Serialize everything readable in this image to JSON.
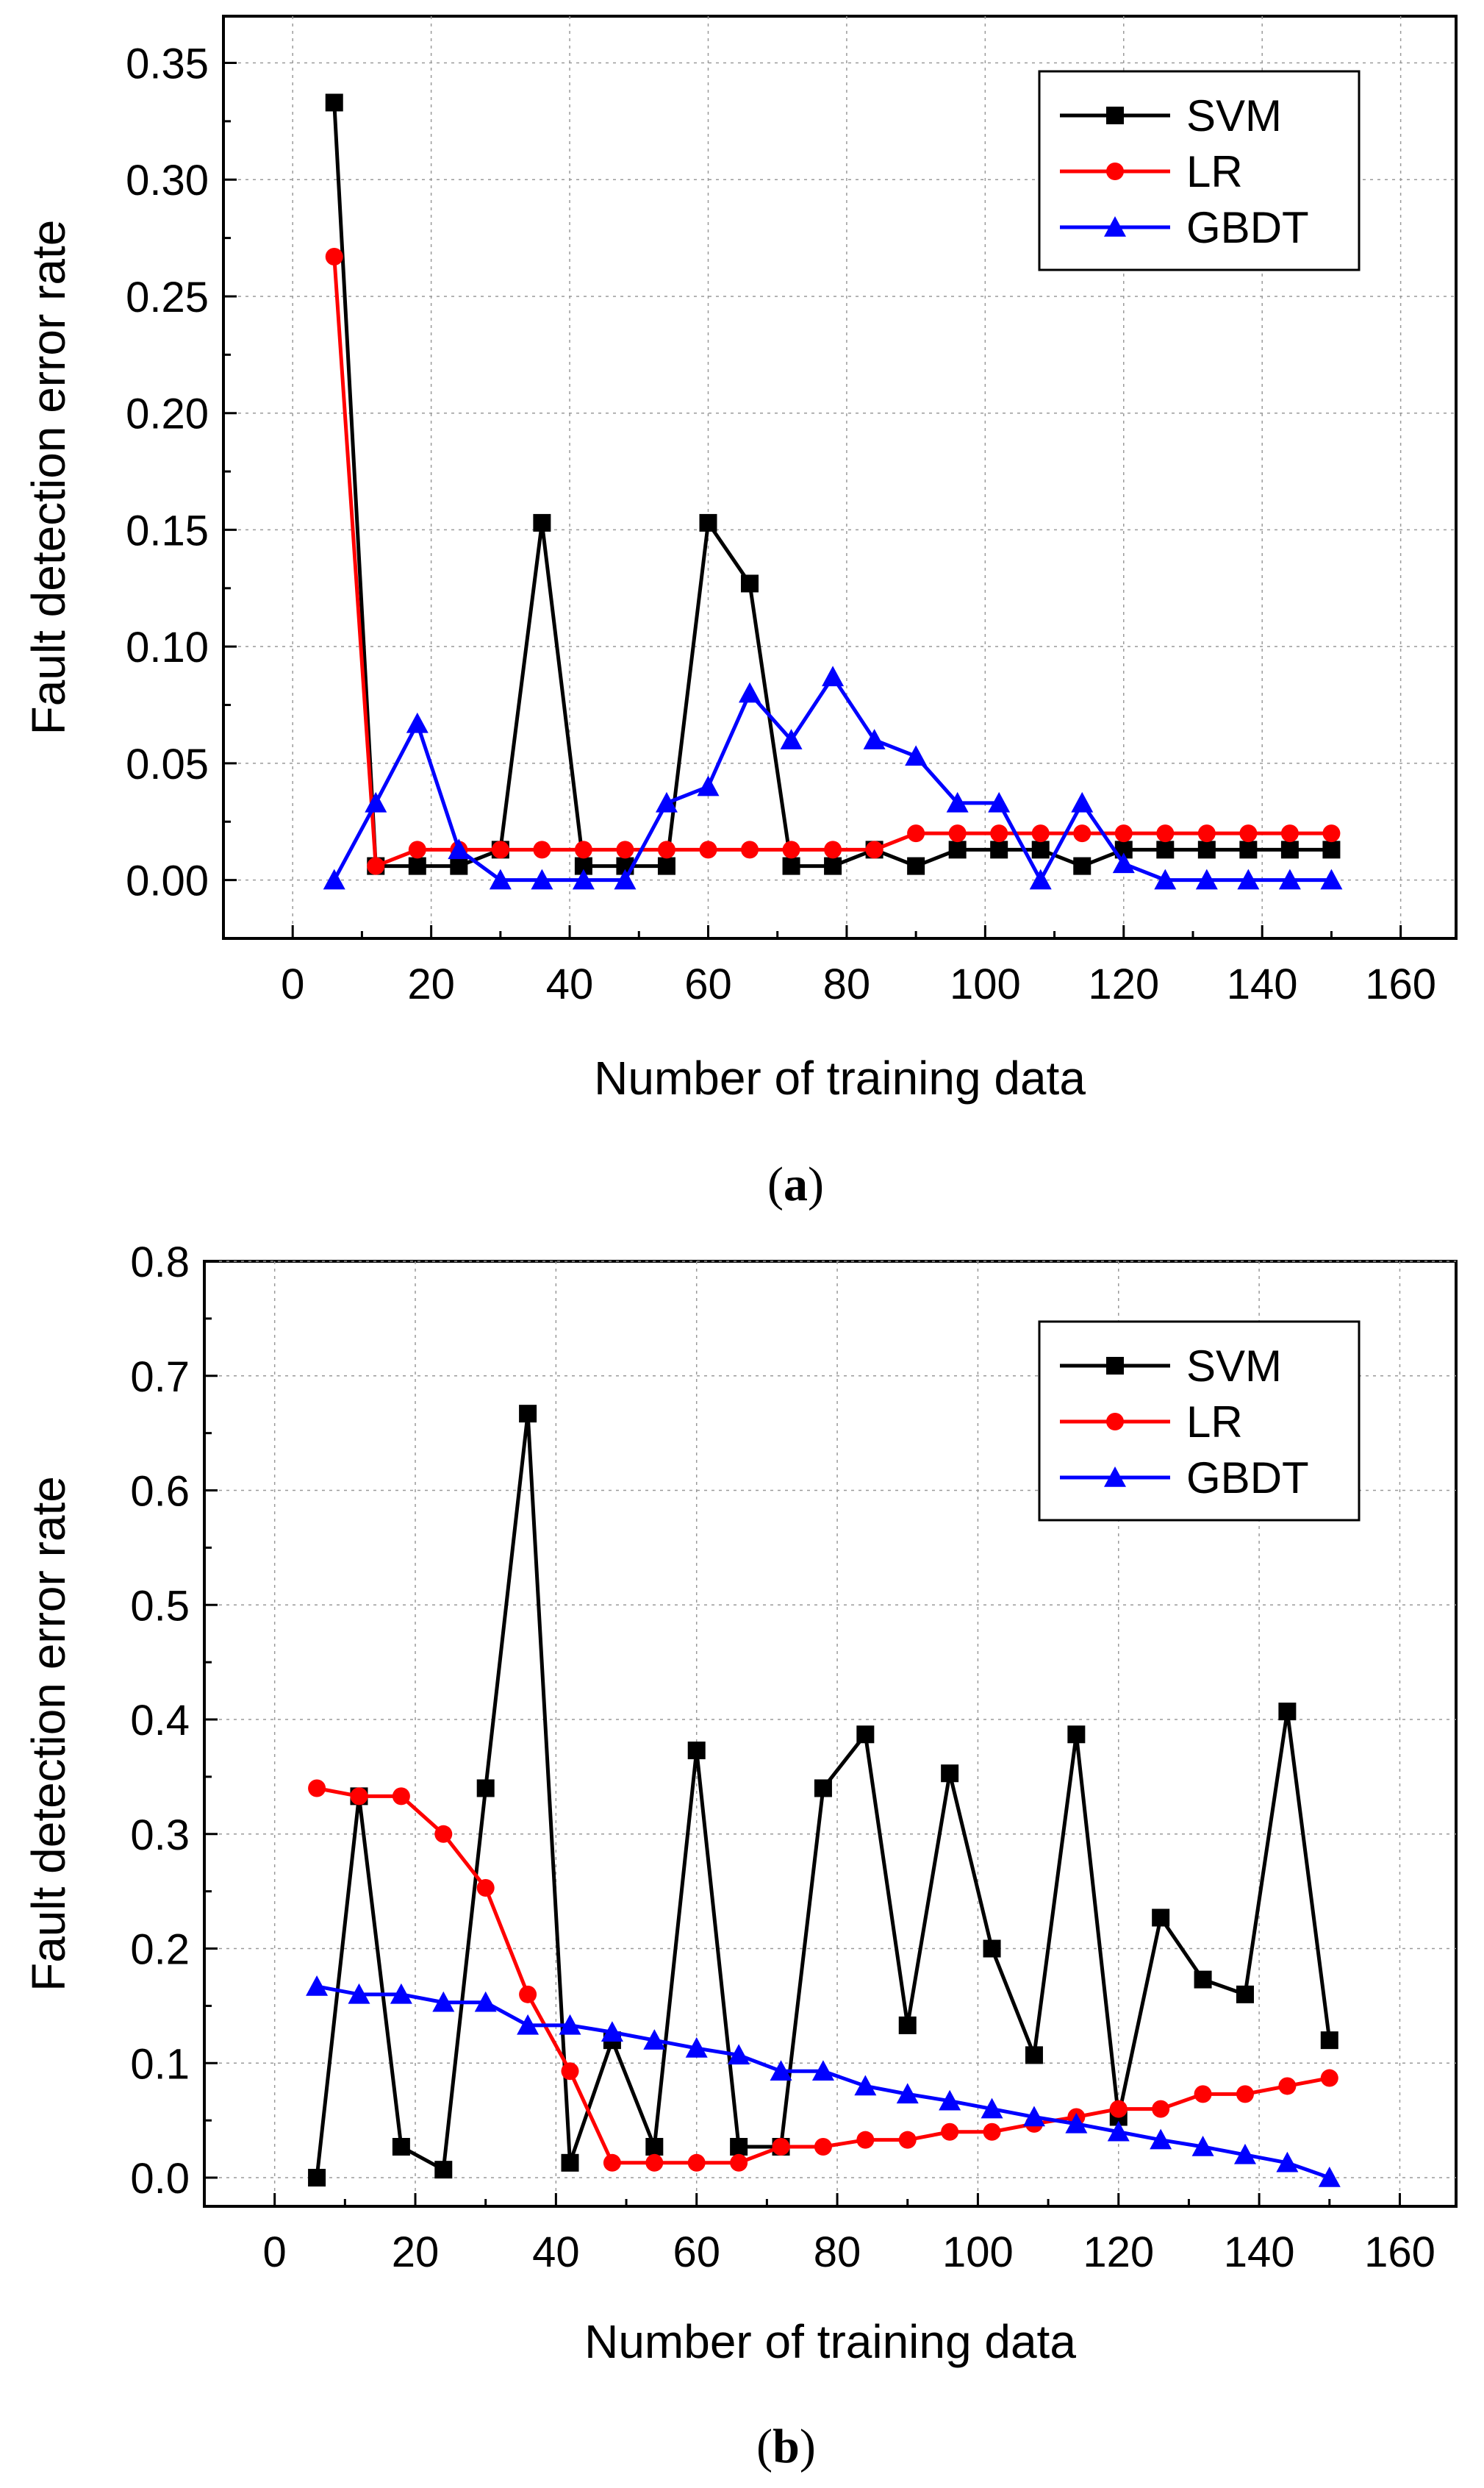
{
  "chart_data": [
    {
      "type": "line",
      "panel": "a",
      "caption_open": "(",
      "caption_letter": "a",
      "caption_close": ")",
      "xlabel": "Number of training data",
      "ylabel": "Fault detection error rate",
      "xlim": [
        -10,
        168
      ],
      "ylim": [
        -0.025,
        0.37
      ],
      "xticks": [
        0,
        20,
        40,
        60,
        80,
        100,
        120,
        140,
        160
      ],
      "xtick_labels": [
        "0",
        "20",
        "40",
        "60",
        "80",
        "100",
        "120",
        "140",
        "160"
      ],
      "yticks": [
        0.0,
        0.05,
        0.1,
        0.15,
        0.2,
        0.25,
        0.3,
        0.35
      ],
      "ytick_labels": [
        "0.00",
        "0.05",
        "0.10",
        "0.15",
        "0.20",
        "0.25",
        "0.30",
        "0.35"
      ],
      "grid": true,
      "legend_position": "top-right",
      "x": [
        6,
        12,
        18,
        24,
        30,
        36,
        42,
        48,
        54,
        60,
        66,
        72,
        78,
        84,
        90,
        96,
        102,
        108,
        114,
        120,
        126,
        132,
        138,
        144,
        150
      ],
      "series": [
        {
          "name": "SVM",
          "color": "#000000",
          "marker": "square",
          "values": [
            0.333,
            0.006,
            0.006,
            0.006,
            0.013,
            0.153,
            0.006,
            0.006,
            0.006,
            0.153,
            0.127,
            0.006,
            0.006,
            0.013,
            0.006,
            0.013,
            0.013,
            0.013,
            0.006,
            0.013,
            0.013,
            0.013,
            0.013,
            0.013,
            0.013
          ]
        },
        {
          "name": "LR",
          "color": "#ff0000",
          "marker": "circle",
          "values": [
            0.267,
            0.006,
            0.013,
            0.013,
            0.013,
            0.013,
            0.013,
            0.013,
            0.013,
            0.013,
            0.013,
            0.013,
            0.013,
            0.013,
            0.02,
            0.02,
            0.02,
            0.02,
            0.02,
            0.02,
            0.02,
            0.02,
            0.02,
            0.02,
            0.02
          ]
        },
        {
          "name": "GBDT",
          "color": "#0000ff",
          "marker": "triangle",
          "values": [
            0.0,
            0.033,
            0.067,
            0.013,
            0.0,
            0.0,
            0.0,
            0.0,
            0.033,
            0.04,
            0.08,
            0.06,
            0.087,
            0.06,
            0.053,
            0.033,
            0.033,
            0.0,
            0.033,
            0.007,
            0.0,
            0.0,
            0.0,
            0.0,
            0.0
          ]
        }
      ]
    },
    {
      "type": "line",
      "panel": "b",
      "caption_open": "(",
      "caption_letter": "b",
      "caption_close": ")",
      "xlabel": "Number of training data",
      "ylabel": "Fault detection error rate",
      "xlim": [
        -10,
        168
      ],
      "ylim": [
        -0.025,
        0.8
      ],
      "xticks": [
        0,
        20,
        40,
        60,
        80,
        100,
        120,
        140,
        160
      ],
      "xtick_labels": [
        "0",
        "20",
        "40",
        "60",
        "80",
        "100",
        "120",
        "140",
        "160"
      ],
      "yticks": [
        0.0,
        0.1,
        0.2,
        0.3,
        0.4,
        0.5,
        0.6,
        0.7,
        0.8
      ],
      "ytick_labels": [
        "0.0",
        "0.1",
        "0.2",
        "0.3",
        "0.4",
        "0.5",
        "0.6",
        "0.7",
        "0.8"
      ],
      "grid": true,
      "legend_position": "top-right",
      "x": [
        6,
        12,
        18,
        24,
        30,
        36,
        42,
        48,
        54,
        60,
        66,
        72,
        78,
        84,
        90,
        96,
        102,
        108,
        114,
        120,
        126,
        132,
        138,
        144,
        150
      ],
      "series": [
        {
          "name": "SVM",
          "color": "#000000",
          "marker": "square",
          "values": [
            0.0,
            0.333,
            0.027,
            0.007,
            0.34,
            0.667,
            0.013,
            0.12,
            0.027,
            0.373,
            0.027,
            0.027,
            0.34,
            0.387,
            0.133,
            0.353,
            0.2,
            0.107,
            0.387,
            0.053,
            0.227,
            0.173,
            0.16,
            0.407,
            0.12
          ]
        },
        {
          "name": "LR",
          "color": "#ff0000",
          "marker": "circle",
          "values": [
            0.34,
            0.333,
            0.333,
            0.3,
            0.253,
            0.16,
            0.093,
            0.013,
            0.013,
            0.013,
            0.013,
            0.027,
            0.027,
            0.033,
            0.033,
            0.04,
            0.04,
            0.047,
            0.053,
            0.06,
            0.06,
            0.073,
            0.073,
            0.08,
            0.087
          ]
        },
        {
          "name": "GBDT",
          "color": "#0000ff",
          "marker": "triangle",
          "values": [
            0.167,
            0.16,
            0.16,
            0.153,
            0.153,
            0.133,
            0.133,
            0.127,
            0.12,
            0.113,
            0.107,
            0.093,
            0.093,
            0.08,
            0.073,
            0.067,
            0.06,
            0.053,
            0.047,
            0.04,
            0.033,
            0.027,
            0.02,
            0.013,
            0.0
          ]
        }
      ]
    }
  ]
}
